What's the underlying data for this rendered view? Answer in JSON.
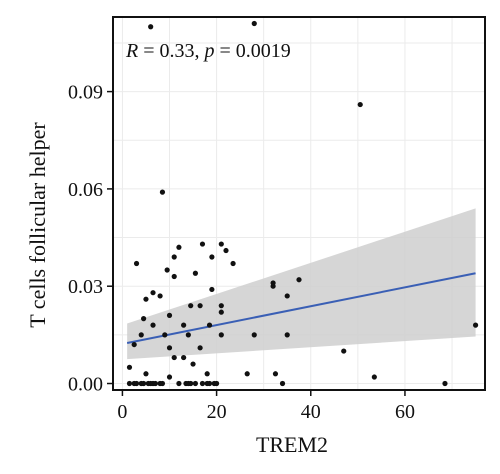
{
  "chart_data": {
    "type": "scatter",
    "xlabel": "TREM2",
    "ylabel": "T cells follicular helper",
    "xlim": [
      -2,
      77
    ],
    "ylim": [
      -0.002,
      0.113
    ],
    "x_ticks": [
      0,
      20,
      40,
      60
    ],
    "x_tick_labels": [
      "0",
      "20",
      "40",
      "60"
    ],
    "y_ticks": [
      0.0,
      0.03,
      0.06,
      0.09
    ],
    "y_tick_labels": [
      "0.00",
      "0.03",
      "0.06",
      "0.09"
    ],
    "grid": true,
    "annotation": {
      "r_symbol": "R",
      "r_value": " = 0.33, ",
      "p_symbol": "p",
      "p_value": " = 0.0019"
    },
    "regression": {
      "x_start": 1.0,
      "y_start": 0.0125,
      "x_end": 75.0,
      "y_end": 0.034,
      "ci_lower_start": 0.0075,
      "ci_upper_start": 0.0185,
      "ci_lower_end": 0.0145,
      "ci_upper_end": 0.054
    },
    "colors": {
      "points": "#111111",
      "line": "#3a5fb5",
      "ci_band": "#cfcfcf",
      "panel_border": "#111111",
      "grid": "#ebebeb"
    },
    "points": [
      {
        "x": 6,
        "y": 0.11
      },
      {
        "x": 28,
        "y": 0.111
      },
      {
        "x": 50.5,
        "y": 0.086
      },
      {
        "x": 8.5,
        "y": 0.059
      },
      {
        "x": 12,
        "y": 0.042
      },
      {
        "x": 17,
        "y": 0.043
      },
      {
        "x": 21,
        "y": 0.043
      },
      {
        "x": 22,
        "y": 0.041
      },
      {
        "x": 11,
        "y": 0.039
      },
      {
        "x": 19,
        "y": 0.039
      },
      {
        "x": 3,
        "y": 0.037
      },
      {
        "x": 9.5,
        "y": 0.035
      },
      {
        "x": 15.5,
        "y": 0.034
      },
      {
        "x": 23.5,
        "y": 0.037
      },
      {
        "x": 11,
        "y": 0.033
      },
      {
        "x": 32,
        "y": 0.031
      },
      {
        "x": 32,
        "y": 0.03
      },
      {
        "x": 37.5,
        "y": 0.032
      },
      {
        "x": 6.5,
        "y": 0.028
      },
      {
        "x": 8,
        "y": 0.027
      },
      {
        "x": 5,
        "y": 0.026
      },
      {
        "x": 19,
        "y": 0.029
      },
      {
        "x": 35,
        "y": 0.027
      },
      {
        "x": 14.5,
        "y": 0.024
      },
      {
        "x": 4.5,
        "y": 0.02
      },
      {
        "x": 10,
        "y": 0.021
      },
      {
        "x": 16.5,
        "y": 0.024
      },
      {
        "x": 21,
        "y": 0.024
      },
      {
        "x": 13,
        "y": 0.018
      },
      {
        "x": 18.5,
        "y": 0.018
      },
      {
        "x": 21,
        "y": 0.022
      },
      {
        "x": 6.5,
        "y": 0.018
      },
      {
        "x": 4,
        "y": 0.015
      },
      {
        "x": 9,
        "y": 0.015
      },
      {
        "x": 14,
        "y": 0.015
      },
      {
        "x": 21,
        "y": 0.015
      },
      {
        "x": 28,
        "y": 0.015
      },
      {
        "x": 35,
        "y": 0.015
      },
      {
        "x": 75,
        "y": 0.018
      },
      {
        "x": 10,
        "y": 0.011
      },
      {
        "x": 16.5,
        "y": 0.011
      },
      {
        "x": 2.5,
        "y": 0.012
      },
      {
        "x": 11,
        "y": 0.008
      },
      {
        "x": 13,
        "y": 0.008
      },
      {
        "x": 47,
        "y": 0.01
      },
      {
        "x": 15,
        "y": 0.006
      },
      {
        "x": 1.5,
        "y": 0.005
      },
      {
        "x": 5,
        "y": 0.003
      },
      {
        "x": 10,
        "y": 0.002
      },
      {
        "x": 18,
        "y": 0.003
      },
      {
        "x": 26.5,
        "y": 0.003
      },
      {
        "x": 32.5,
        "y": 0.003
      },
      {
        "x": 53.5,
        "y": 0.002
      },
      {
        "x": 1.5,
        "y": 0.0
      },
      {
        "x": 2.5,
        "y": 0.0
      },
      {
        "x": 3,
        "y": 0.0
      },
      {
        "x": 4,
        "y": 0.0
      },
      {
        "x": 4.5,
        "y": 0.0
      },
      {
        "x": 5.5,
        "y": 0.0
      },
      {
        "x": 6,
        "y": 0.0
      },
      {
        "x": 6.5,
        "y": 0.0
      },
      {
        "x": 7,
        "y": 0.0
      },
      {
        "x": 8,
        "y": 0.0
      },
      {
        "x": 8.5,
        "y": 0.0
      },
      {
        "x": 12,
        "y": 0.0
      },
      {
        "x": 13.5,
        "y": 0.0
      },
      {
        "x": 14,
        "y": 0.0
      },
      {
        "x": 14.5,
        "y": 0.0
      },
      {
        "x": 15.5,
        "y": 0.0
      },
      {
        "x": 17,
        "y": 0.0
      },
      {
        "x": 18,
        "y": 0.0
      },
      {
        "x": 18.5,
        "y": 0.0
      },
      {
        "x": 19.5,
        "y": 0.0
      },
      {
        "x": 20,
        "y": 0.0
      },
      {
        "x": 34,
        "y": 0.0
      },
      {
        "x": 68.5,
        "y": 0.0
      }
    ]
  }
}
